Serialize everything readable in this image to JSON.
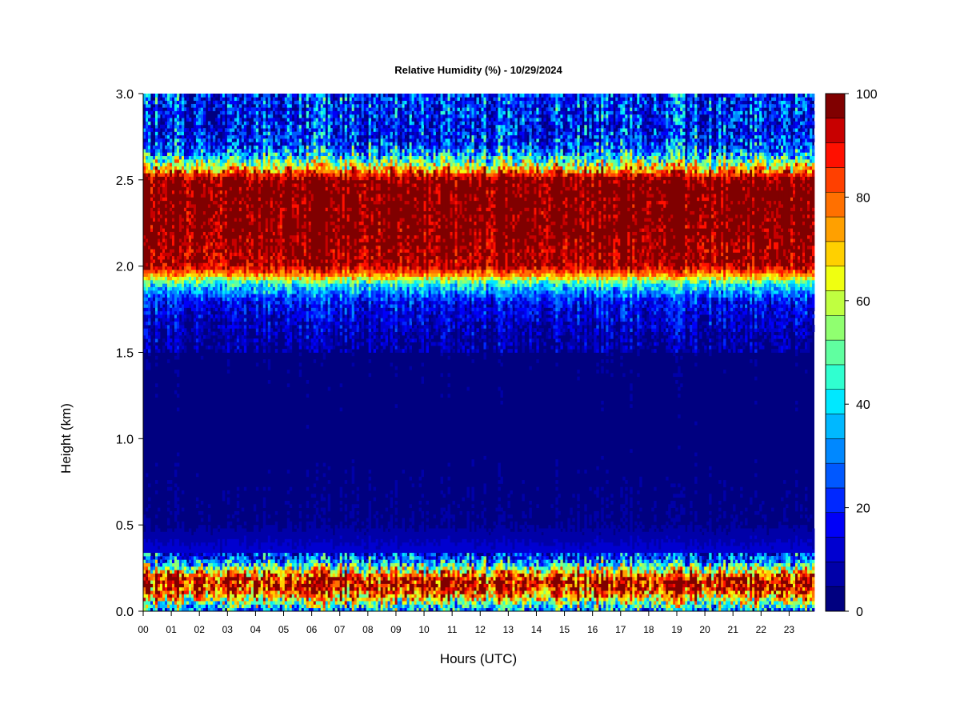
{
  "chart_data": {
    "type": "heatmap",
    "title": "Relative Humidity (%) - 10/29/2024",
    "xlabel": "Hours (UTC)",
    "ylabel": "Height (km)",
    "x_ticks": [
      "00",
      "01",
      "02",
      "03",
      "04",
      "05",
      "06",
      "07",
      "08",
      "09",
      "10",
      "11",
      "12",
      "13",
      "14",
      "15",
      "16",
      "17",
      "18",
      "19",
      "20",
      "21",
      "22",
      "23"
    ],
    "y_ticks": [
      "0.0",
      "0.5",
      "1.0",
      "1.5",
      "2.0",
      "2.5",
      "3.0"
    ],
    "y_tick_values": [
      0.0,
      0.5,
      1.0,
      1.5,
      2.0,
      2.5,
      3.0
    ],
    "xlim": [
      0,
      23.9
    ],
    "ylim": [
      0,
      3.0
    ],
    "colorbar": {
      "ticks": [
        "0",
        "20",
        "40",
        "60",
        "80",
        "100"
      ],
      "tick_values": [
        0,
        20,
        40,
        60,
        80,
        100
      ],
      "range": [
        0,
        100
      ],
      "levels": [
        "#000080",
        "#0000A8",
        "#0000D0",
        "#0000F8",
        "#0028FF",
        "#0058FF",
        "#0088FF",
        "#00B8FF",
        "#00E8FF",
        "#30FFD0",
        "#60FFA0",
        "#90FF70",
        "#C0FF40",
        "#F0FF10",
        "#FFD000",
        "#FFA000",
        "#FF7000",
        "#FF4000",
        "#FF1000",
        "#C80000",
        "#800000"
      ]
    },
    "height_profile": {
      "heights_km": [
        0.0,
        0.05,
        0.1,
        0.15,
        0.2,
        0.25,
        0.3,
        0.35,
        0.5,
        1.0,
        1.5,
        1.6,
        1.7,
        1.8,
        1.9,
        1.95,
        2.0,
        2.2,
        2.5,
        2.55,
        2.6,
        2.65,
        2.7,
        2.8,
        3.0
      ],
      "rh_percent": [
        30,
        55,
        80,
        95,
        90,
        55,
        25,
        12,
        4,
        2,
        3,
        6,
        12,
        18,
        45,
        75,
        95,
        100,
        100,
        80,
        55,
        35,
        22,
        16,
        20
      ]
    }
  }
}
